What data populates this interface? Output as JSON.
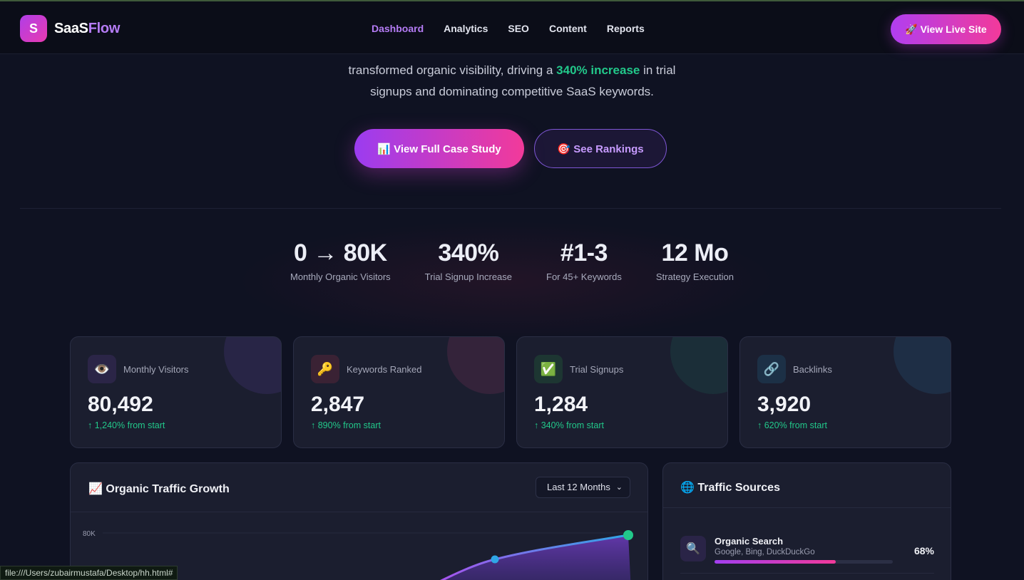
{
  "nav": {
    "logo_letter": "S",
    "brand_a": "SaaS",
    "brand_b": "Flow",
    "links": [
      "Dashboard",
      "Analytics",
      "SEO",
      "Content",
      "Reports"
    ],
    "active": "Dashboard",
    "cta": "🚀 View Live Site"
  },
  "hero": {
    "line2_pre": "transformed organic visibility, driving a ",
    "line2_highlight": "340% increase",
    "line2_post": " in trial",
    "line3": "signups and dominating competitive SaaS keywords.",
    "btn_primary": "📊 View Full Case Study",
    "btn_secondary": "🎯 See Rankings"
  },
  "stats": [
    {
      "value": "0 → 80K",
      "label": "Monthly Organic Visitors"
    },
    {
      "value": "340%",
      "label": "Trial Signup Increase"
    },
    {
      "value": "#1-3",
      "label": "For 45+ Keywords"
    },
    {
      "value": "12 Mo",
      "label": "Strategy Execution"
    }
  ],
  "cards": [
    {
      "icon": "👁️",
      "icon_name": "eye-icon",
      "label": "Monthly Visitors",
      "value": "80,492",
      "change": "↑ 1,240% from start",
      "accent": "#8a5cf0"
    },
    {
      "icon": "🔑",
      "icon_name": "key-icon",
      "label": "Keywords Ranked",
      "value": "2,847",
      "change": "↑ 890% from start",
      "accent": "#e0468c"
    },
    {
      "icon": "✅",
      "icon_name": "check-icon",
      "label": "Trial Signups",
      "value": "1,284",
      "change": "↑ 340% from start",
      "accent": "#22c88a"
    },
    {
      "icon": "🔗",
      "icon_name": "link-icon",
      "label": "Backlinks",
      "value": "3,920",
      "change": "↑ 620% from start",
      "accent": "#3aa2e8"
    }
  ],
  "chart_panel": {
    "title": "📈 Organic Traffic Growth",
    "range": "Last 12 Months",
    "y_tick": "80K"
  },
  "sources": {
    "title": "🌐 Traffic Sources",
    "items": [
      {
        "icon": "🔍",
        "name": "Organic Search",
        "sub": "Google, Bing, DuckDuckGo",
        "pct": "68%",
        "fraction": 0.68
      }
    ]
  },
  "status_bar": "file:///Users/zubairmustafa/Desktop/hh.html#",
  "colors": {
    "accent_purple": "#b57cf5",
    "accent_pink": "#f23a9a",
    "positive": "#22c88a"
  }
}
